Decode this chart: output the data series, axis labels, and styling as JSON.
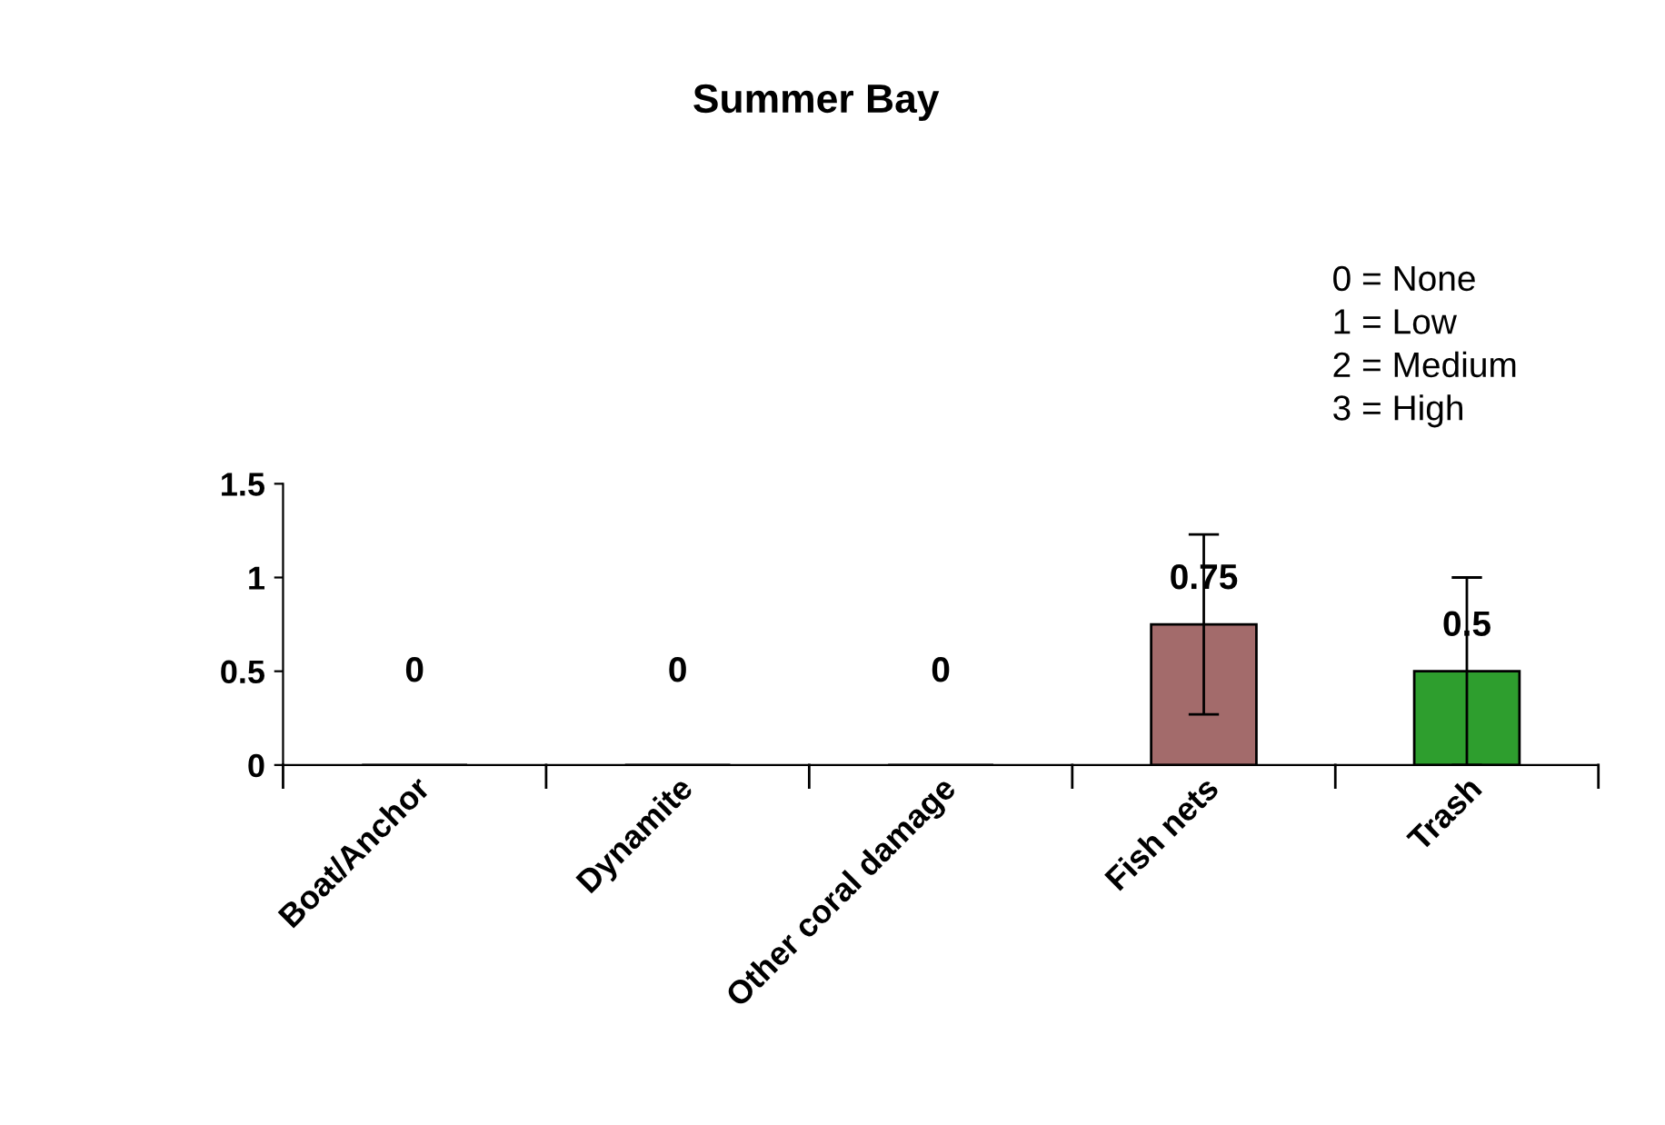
{
  "chart_data": {
    "type": "bar",
    "title": "Summer Bay",
    "categories": [
      "Boat/Anchor",
      "Dynamite",
      "Other coral damage",
      "Fish nets",
      "Trash"
    ],
    "values": [
      0,
      0,
      0,
      0.75,
      0.5
    ],
    "colors": [
      "#000000",
      "#000000",
      "#000000",
      "#a36b6b",
      "#2e9e2e"
    ],
    "errors": [
      null,
      null,
      null,
      0.48,
      0.5
    ],
    "data_labels": true,
    "ylim": [
      0,
      1.5
    ],
    "yticks": [
      0,
      0.5,
      1,
      1.5
    ],
    "grid": false,
    "legend": false,
    "annotations": [
      "0 = None\n1 = Low\n2 = Medium\n3 = High"
    ]
  }
}
